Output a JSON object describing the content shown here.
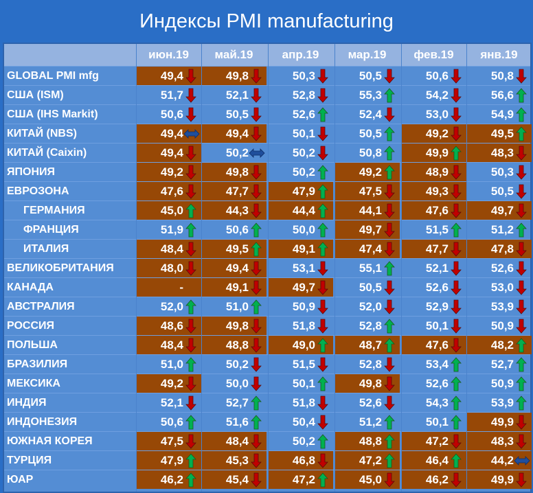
{
  "title": "Индексы PMI manufacturing",
  "colors": {
    "background": "#2a6ec6",
    "cell_blue": "#548dd4",
    "cell_brown": "#974806",
    "header": "#95b3e0",
    "arrow_up": "#00b050",
    "arrow_down": "#c00000",
    "arrow_flat": "#1f4e9c"
  },
  "chart_data": {
    "type": "table",
    "title": "Индексы PMI manufacturing",
    "columns": [
      "июн.19",
      "май.19",
      "апр.19",
      "мар.19",
      "фев.19",
      "янв.19"
    ],
    "rows": [
      {
        "name": "GLOBAL PMI mfg",
        "indent": false,
        "values": [
          "49,4",
          "49,8",
          "50,3",
          "50,5",
          "50,6",
          "50,8"
        ],
        "trend": [
          "down",
          "down",
          "down",
          "down",
          "down",
          "down"
        ],
        "below50": [
          true,
          true,
          false,
          false,
          false,
          false
        ]
      },
      {
        "name": "США (ISM)",
        "indent": false,
        "values": [
          "51,7",
          "52,1",
          "52,8",
          "55,3",
          "54,2",
          "56,6"
        ],
        "trend": [
          "down",
          "down",
          "down",
          "up",
          "down",
          "up"
        ],
        "below50": [
          false,
          false,
          false,
          false,
          false,
          false
        ]
      },
      {
        "name": "США (IHS Markit)",
        "indent": false,
        "values": [
          "50,6",
          "50,5",
          "52,6",
          "52,4",
          "53,0",
          "54,9"
        ],
        "trend": [
          "down",
          "down",
          "up",
          "down",
          "down",
          "up"
        ],
        "below50": [
          false,
          false,
          false,
          false,
          false,
          false
        ]
      },
      {
        "name": "КИТАЙ (NBS)",
        "indent": false,
        "values": [
          "49,4",
          "49,4",
          "50,1",
          "50,5",
          "49,2",
          "49,5"
        ],
        "trend": [
          "flat",
          "down",
          "down",
          "up",
          "down",
          "up"
        ],
        "below50": [
          true,
          true,
          false,
          false,
          true,
          true
        ]
      },
      {
        "name": "КИТАЙ (Caixin)",
        "indent": false,
        "values": [
          "49,4",
          "50,2",
          "50,2",
          "50,8",
          "49,9",
          "48,3"
        ],
        "trend": [
          "down",
          "flat",
          "down",
          "up",
          "up",
          "down"
        ],
        "below50": [
          true,
          false,
          false,
          false,
          true,
          true
        ]
      },
      {
        "name": "ЯПОНИЯ",
        "indent": false,
        "values": [
          "49,2",
          "49,8",
          "50,2",
          "49,2",
          "48,9",
          "50,3"
        ],
        "trend": [
          "down",
          "down",
          "up",
          "up",
          "down",
          "down"
        ],
        "below50": [
          true,
          true,
          false,
          true,
          true,
          false
        ]
      },
      {
        "name": "ЕВРОЗОНА",
        "indent": false,
        "values": [
          "47,6",
          "47,7",
          "47,9",
          "47,5",
          "49,3",
          "50,5"
        ],
        "trend": [
          "down",
          "down",
          "up",
          "down",
          "down",
          "down"
        ],
        "below50": [
          true,
          true,
          true,
          true,
          true,
          false
        ]
      },
      {
        "name": "ГЕРМАНИЯ",
        "indent": true,
        "values": [
          "45,0",
          "44,3",
          "44,4",
          "44,1",
          "47,6",
          "49,7"
        ],
        "trend": [
          "up",
          "down",
          "up",
          "down",
          "down",
          "down"
        ],
        "below50": [
          true,
          true,
          true,
          true,
          true,
          true
        ]
      },
      {
        "name": "ФРАНЦИЯ",
        "indent": true,
        "values": [
          "51,9",
          "50,6",
          "50,0",
          "49,7",
          "51,5",
          "51,2"
        ],
        "trend": [
          "up",
          "up",
          "up",
          "down",
          "up",
          "up"
        ],
        "below50": [
          false,
          false,
          false,
          true,
          false,
          false
        ]
      },
      {
        "name": "ИТАЛИЯ",
        "indent": true,
        "values": [
          "48,4",
          "49,5",
          "49,1",
          "47,4",
          "47,7",
          "47,8"
        ],
        "trend": [
          "down",
          "up",
          "up",
          "down",
          "down",
          "down"
        ],
        "below50": [
          true,
          true,
          true,
          true,
          true,
          true
        ]
      },
      {
        "name": "ВЕЛИКОБРИТАНИЯ",
        "indent": false,
        "values": [
          "48,0",
          "49,4",
          "53,1",
          "55,1",
          "52,1",
          "52,6"
        ],
        "trend": [
          "down",
          "down",
          "down",
          "up",
          "down",
          "down"
        ],
        "below50": [
          true,
          true,
          false,
          false,
          false,
          false
        ]
      },
      {
        "name": "КАНАДА",
        "indent": false,
        "values": [
          "-",
          "49,1",
          "49,7",
          "50,5",
          "52,6",
          "53,0"
        ],
        "trend": [
          "none",
          "down",
          "down",
          "down",
          "down",
          "down"
        ],
        "below50": [
          true,
          true,
          true,
          false,
          false,
          false
        ]
      },
      {
        "name": "АВСТРАЛИЯ",
        "indent": false,
        "values": [
          "52,0",
          "51,0",
          "50,9",
          "52,0",
          "52,9",
          "53,9"
        ],
        "trend": [
          "up",
          "up",
          "down",
          "down",
          "down",
          "down"
        ],
        "below50": [
          false,
          false,
          false,
          false,
          false,
          false
        ]
      },
      {
        "name": "РОССИЯ",
        "indent": false,
        "values": [
          "48,6",
          "49,8",
          "51,8",
          "52,8",
          "50,1",
          "50,9"
        ],
        "trend": [
          "down",
          "down",
          "down",
          "up",
          "down",
          "down"
        ],
        "below50": [
          true,
          true,
          false,
          false,
          false,
          false
        ]
      },
      {
        "name": "ПОЛЬША",
        "indent": false,
        "values": [
          "48,4",
          "48,8",
          "49,0",
          "48,7",
          "47,6",
          "48,2"
        ],
        "trend": [
          "down",
          "down",
          "up",
          "up",
          "down",
          "up"
        ],
        "below50": [
          true,
          true,
          true,
          true,
          true,
          true
        ]
      },
      {
        "name": "БРАЗИЛИЯ",
        "indent": false,
        "values": [
          "51,0",
          "50,2",
          "51,5",
          "52,8",
          "53,4",
          "52,7"
        ],
        "trend": [
          "up",
          "down",
          "down",
          "down",
          "up",
          "up"
        ],
        "below50": [
          false,
          false,
          false,
          false,
          false,
          false
        ]
      },
      {
        "name": "МЕКСИКА",
        "indent": false,
        "values": [
          "49,2",
          "50,0",
          "50,1",
          "49,8",
          "52,6",
          "50,9"
        ],
        "trend": [
          "down",
          "down",
          "up",
          "down",
          "up",
          "up"
        ],
        "below50": [
          true,
          false,
          false,
          true,
          false,
          false
        ]
      },
      {
        "name": "ИНДИЯ",
        "indent": false,
        "values": [
          "52,1",
          "52,7",
          "51,8",
          "52,6",
          "54,3",
          "53,9"
        ],
        "trend": [
          "down",
          "up",
          "down",
          "down",
          "up",
          "up"
        ],
        "below50": [
          false,
          false,
          false,
          false,
          false,
          false
        ]
      },
      {
        "name": "ИНДОНЕЗИЯ",
        "indent": false,
        "values": [
          "50,6",
          "51,6",
          "50,4",
          "51,2",
          "50,1",
          "49,9"
        ],
        "trend": [
          "up",
          "up",
          "down",
          "up",
          "up",
          "down"
        ],
        "below50": [
          false,
          false,
          false,
          false,
          false,
          true
        ]
      },
      {
        "name": "ЮЖНАЯ КОРЕЯ",
        "indent": false,
        "values": [
          "47,5",
          "48,4",
          "50,2",
          "48,8",
          "47,2",
          "48,3"
        ],
        "trend": [
          "down",
          "down",
          "up",
          "up",
          "down",
          "down"
        ],
        "below50": [
          true,
          true,
          false,
          true,
          true,
          true
        ]
      },
      {
        "name": "ТУРЦИЯ",
        "indent": false,
        "values": [
          "47,9",
          "45,3",
          "46,8",
          "47,2",
          "46,4",
          "44,2"
        ],
        "trend": [
          "up",
          "down",
          "down",
          "up",
          "up",
          "flat"
        ],
        "below50": [
          true,
          true,
          true,
          true,
          true,
          true
        ]
      },
      {
        "name": "ЮАР",
        "indent": false,
        "values": [
          "46,2",
          "45,4",
          "47,2",
          "45,0",
          "46,2",
          "49,9"
        ],
        "trend": [
          "up",
          "down",
          "up",
          "down",
          "down",
          "down"
        ],
        "below50": [
          true,
          true,
          true,
          true,
          true,
          true
        ]
      }
    ]
  }
}
